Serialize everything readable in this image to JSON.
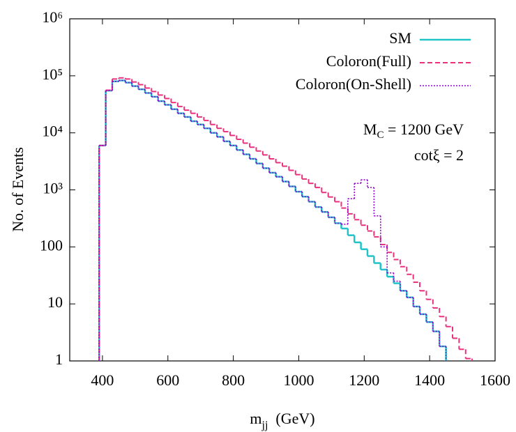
{
  "chart_data": {
    "type": "step-histogram",
    "x_label": {
      "text": "m",
      "sub": "jj",
      "rest": "  (GeV)"
    },
    "y_label": "No. of Events",
    "log_y": true,
    "xlim": [
      300,
      1600
    ],
    "xticks": [
      400,
      600,
      800,
      1000,
      1200,
      1400,
      1600
    ],
    "ylim": [
      1,
      1000000
    ],
    "yticks": [
      1,
      10,
      100,
      {
        "value": 1000,
        "label": "10³"
      },
      {
        "value": 10000,
        "label": "10⁴"
      },
      {
        "value": 100000,
        "label": "10⁵"
      },
      {
        "value": 1000000,
        "label": "10⁶"
      }
    ],
    "legend": "top-right",
    "annotations": [
      {
        "text": "M",
        "sub": "C",
        "rest": " = 1200 GeV"
      },
      {
        "text": "cotξ = 2"
      }
    ],
    "bins": [
      390,
      410,
      430,
      450,
      470,
      490,
      510,
      530,
      550,
      570,
      590,
      610,
      630,
      650,
      670,
      690,
      710,
      730,
      750,
      770,
      790,
      810,
      830,
      850,
      870,
      890,
      910,
      930,
      950,
      970,
      990,
      1010,
      1030,
      1050,
      1070,
      1090,
      1110,
      1130,
      1150,
      1170,
      1190,
      1210,
      1230,
      1250,
      1270,
      1290,
      1310,
      1330,
      1350,
      1370,
      1390,
      1410,
      1430,
      1450,
      1470,
      1490,
      1510,
      1530
    ],
    "series": [
      {
        "name": "SM",
        "color": "#20c4c8",
        "dash": "solid",
        "values": [
          6000,
          55000,
          80000,
          83000,
          76000,
          66000,
          58000,
          50000,
          43000,
          36000,
          31000,
          26000,
          22000,
          19000,
          16000,
          14000,
          12000,
          10000,
          8500,
          7100,
          6000,
          5000,
          4200,
          3500,
          2900,
          2400,
          2000,
          1700,
          1400,
          1150,
          930,
          760,
          620,
          500,
          410,
          330,
          260,
          210,
          160,
          120,
          91,
          69,
          52,
          40,
          30,
          23,
          17,
          13,
          9,
          6.6,
          4.8,
          3.3,
          1.8,
          null,
          null,
          null,
          null
        ]
      },
      {
        "name": "Coloron(Full)",
        "color": "#e8307c",
        "dash": "dashed",
        "values": [
          6000,
          56000,
          88000,
          92000,
          88000,
          78000,
          70000,
          61000,
          53000,
          46000,
          40000,
          34000,
          29000,
          25000,
          22000,
          19000,
          16500,
          14000,
          12000,
          10500,
          9000,
          7700,
          6600,
          5600,
          4800,
          4100,
          3500,
          3000,
          2600,
          2200,
          1850,
          1550,
          1300,
          1100,
          900,
          750,
          620,
          480,
          380,
          300,
          240,
          190,
          150,
          110,
          80,
          60,
          45,
          33,
          24,
          17,
          12,
          8.5,
          6,
          4,
          2.5,
          1.6,
          1.1
        ]
      },
      {
        "name": "Coloron(On-Shell)",
        "color": "#9400d3",
        "dash": "dotted",
        "values": [
          6000,
          55000,
          80000,
          83000,
          76000,
          66000,
          58000,
          50000,
          43000,
          36000,
          31000,
          26000,
          22000,
          19000,
          16000,
          14000,
          12000,
          10000,
          8500,
          7100,
          6000,
          5000,
          4200,
          3500,
          2900,
          2400,
          2000,
          1700,
          1400,
          1150,
          930,
          760,
          620,
          500,
          410,
          330,
          260,
          250,
          700,
          1300,
          1500,
          1100,
          350,
          100,
          35,
          25,
          17,
          13,
          9,
          6.6,
          4.8,
          3.3,
          1.8,
          null,
          null,
          null,
          null
        ]
      }
    ]
  }
}
